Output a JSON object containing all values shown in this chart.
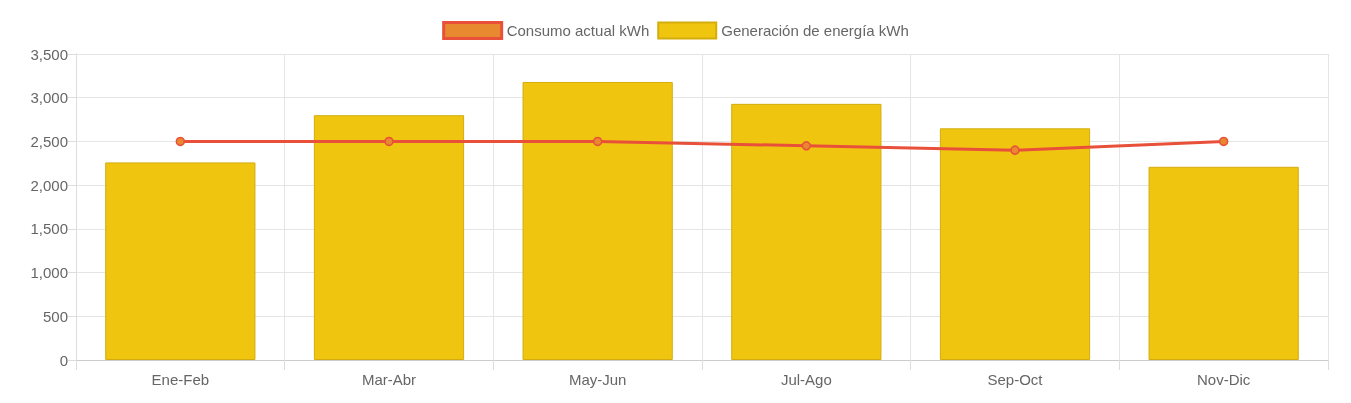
{
  "chart_data": {
    "type": "bar",
    "categories": [
      "Ene-Feb",
      "Mar-Abr",
      "May-Jun",
      "Jul-Ago",
      "Sep-Oct",
      "Nov-Dic"
    ],
    "series": [
      {
        "name": "Consumo actual kWh",
        "type": "line",
        "color": "#e8503a",
        "values": [
          2500,
          2500,
          2500,
          2450,
          2400,
          2500
        ]
      },
      {
        "name": "Generación de energía kWh",
        "color": "#f0c510",
        "values": [
          2260,
          2800,
          3180,
          2930,
          2650,
          2210
        ]
      }
    ],
    "ylim": [
      0,
      3500
    ],
    "yticks": [
      0,
      500,
      {
        "value": 1000,
        "label": "1,000"
      },
      {
        "value": 1500,
        "label": "1,500"
      },
      {
        "value": 2000,
        "label": "2,000"
      },
      {
        "value": 2500,
        "label": "2,500"
      },
      {
        "value": 3000,
        "label": "3,000"
      },
      {
        "value": 3500,
        "label": "3,500"
      }
    ],
    "grid": true,
    "legend": "top",
    "marker": "circle"
  }
}
